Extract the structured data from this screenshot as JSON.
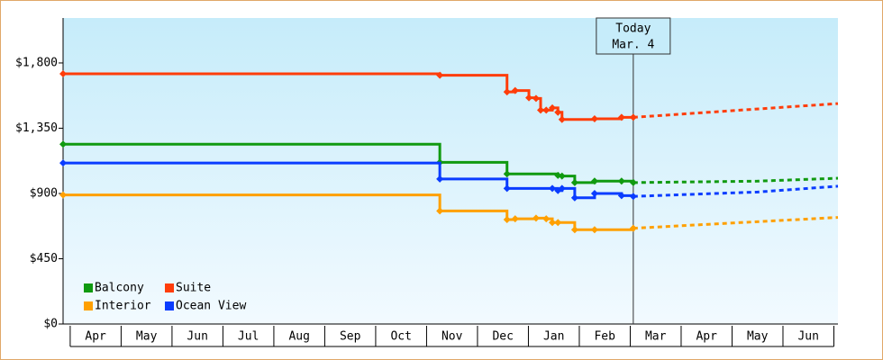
{
  "chart_data": {
    "type": "step-line",
    "categories": [
      "Apr",
      "May",
      "Jun",
      "Jul",
      "Aug",
      "Sep",
      "Oct",
      "Nov",
      "Dec",
      "Jan",
      "Feb",
      "Mar",
      "Apr",
      "May",
      "Jun"
    ],
    "xlim": [
      -0.14,
      15.08
    ],
    "ylim": [
      0,
      2110
    ],
    "yticks": [
      {
        "value": 0,
        "label": "$0"
      },
      {
        "value": 450,
        "label": "$450"
      },
      {
        "value": 900,
        "label": "$900"
      },
      {
        "value": 1350,
        "label": "$1,350"
      },
      {
        "value": 1800,
        "label": "$1,800"
      }
    ],
    "legend": "lower left",
    "annotation": {
      "x": 11.06,
      "text": [
        "Today",
        "Mar. 4"
      ]
    },
    "series": [
      {
        "name": "Balcony",
        "color": "#109a10",
        "x": [
          -0.14,
          7.26,
          8.58,
          9.58,
          9.66,
          9.91,
          10.3,
          10.83,
          11.06
        ],
        "values": [
          1240,
          1115,
          1035,
          1025,
          1020,
          975,
          985,
          985,
          975
        ],
        "forecast_x": [
          11.06,
          13.5,
          15.08
        ],
        "forecast_values": [
          975,
          985,
          1005
        ]
      },
      {
        "name": "Suite",
        "color": "#ff3d0a",
        "x": [
          -0.14,
          7.26,
          8.58,
          8.74,
          9.01,
          9.15,
          9.24,
          9.35,
          9.47,
          9.58,
          9.66,
          10.3,
          10.83,
          11.06
        ],
        "values": [
          1725,
          1715,
          1600,
          1610,
          1560,
          1555,
          1475,
          1475,
          1490,
          1460,
          1410,
          1415,
          1425,
          1425
        ],
        "forecast_x": [
          11.06,
          15.08
        ],
        "forecast_values": [
          1425,
          1520
        ]
      },
      {
        "name": "Interior",
        "color": "#ffa000",
        "x": [
          -0.14,
          7.26,
          8.58,
          8.74,
          9.15,
          9.35,
          9.47,
          9.58,
          9.91,
          10.3,
          11.06
        ],
        "values": [
          890,
          780,
          720,
          725,
          730,
          725,
          700,
          700,
          650,
          650,
          660
        ],
        "forecast_x": [
          11.06,
          15.08
        ],
        "forecast_values": [
          660,
          735
        ]
      },
      {
        "name": "Ocean View",
        "color": "#0a3cff",
        "x": [
          -0.14,
          7.26,
          8.58,
          9.47,
          9.58,
          9.66,
          9.91,
          10.3,
          10.83,
          11.06
        ],
        "values": [
          1110,
          1000,
          935,
          935,
          920,
          935,
          870,
          900,
          885,
          880
        ],
        "forecast_x": [
          11.06,
          13.5,
          15.08
        ],
        "forecast_values": [
          880,
          910,
          950
        ]
      }
    ]
  }
}
